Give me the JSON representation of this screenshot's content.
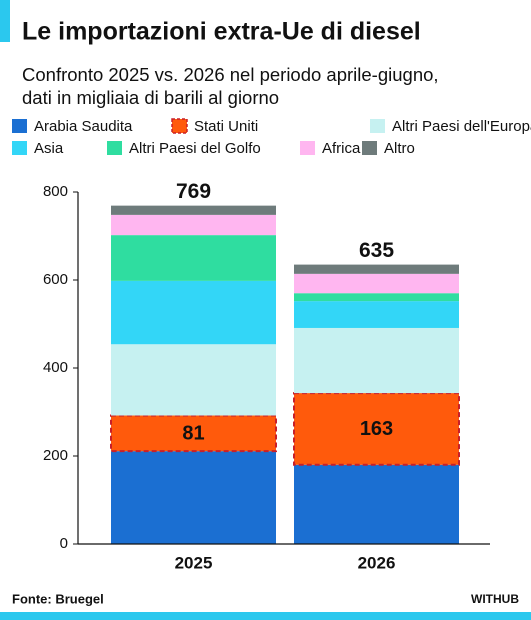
{
  "chart_data": {
    "type": "stacked_bar",
    "title": "Le importazioni extra-Ue di diesel",
    "subtitle": [
      "Confronto 2025 vs. 2026 nel periodo aprile-giugno,",
      "dati in migliaia di barili al giorno"
    ],
    "categories": [
      "2025",
      "2026"
    ],
    "series": [
      {
        "name": "Arabia Saudita",
        "color": "#1b6fd2",
        "values": [
          211,
          180
        ]
      },
      {
        "name": "Stati Uniti",
        "color": "#ff5a0c",
        "border_color": "#c8202a",
        "show_labels": true,
        "values": [
          81,
          163
        ]
      },
      {
        "name": "Altri Paesi dell'Europa",
        "color": "#c6f1f1",
        "values": [
          162,
          148
        ]
      },
      {
        "name": "Asia",
        "color": "#33d6f7",
        "values": [
          144,
          61
        ]
      },
      {
        "name": "Altri Paesi del Golfo",
        "color": "#2fdda0",
        "values": [
          104,
          18
        ]
      },
      {
        "name": "Africa",
        "color": "#ffb6f0",
        "values": [
          46,
          44
        ]
      },
      {
        "name": "Altro",
        "color": "#6e7b7b",
        "values": [
          21,
          21
        ]
      }
    ],
    "totals": [
      769,
      635
    ],
    "ylim": [
      0,
      800
    ],
    "yticks": [
      0,
      200,
      400,
      600,
      800
    ],
    "source": "Fonte: Bruegel",
    "credit": "WITHUB"
  }
}
